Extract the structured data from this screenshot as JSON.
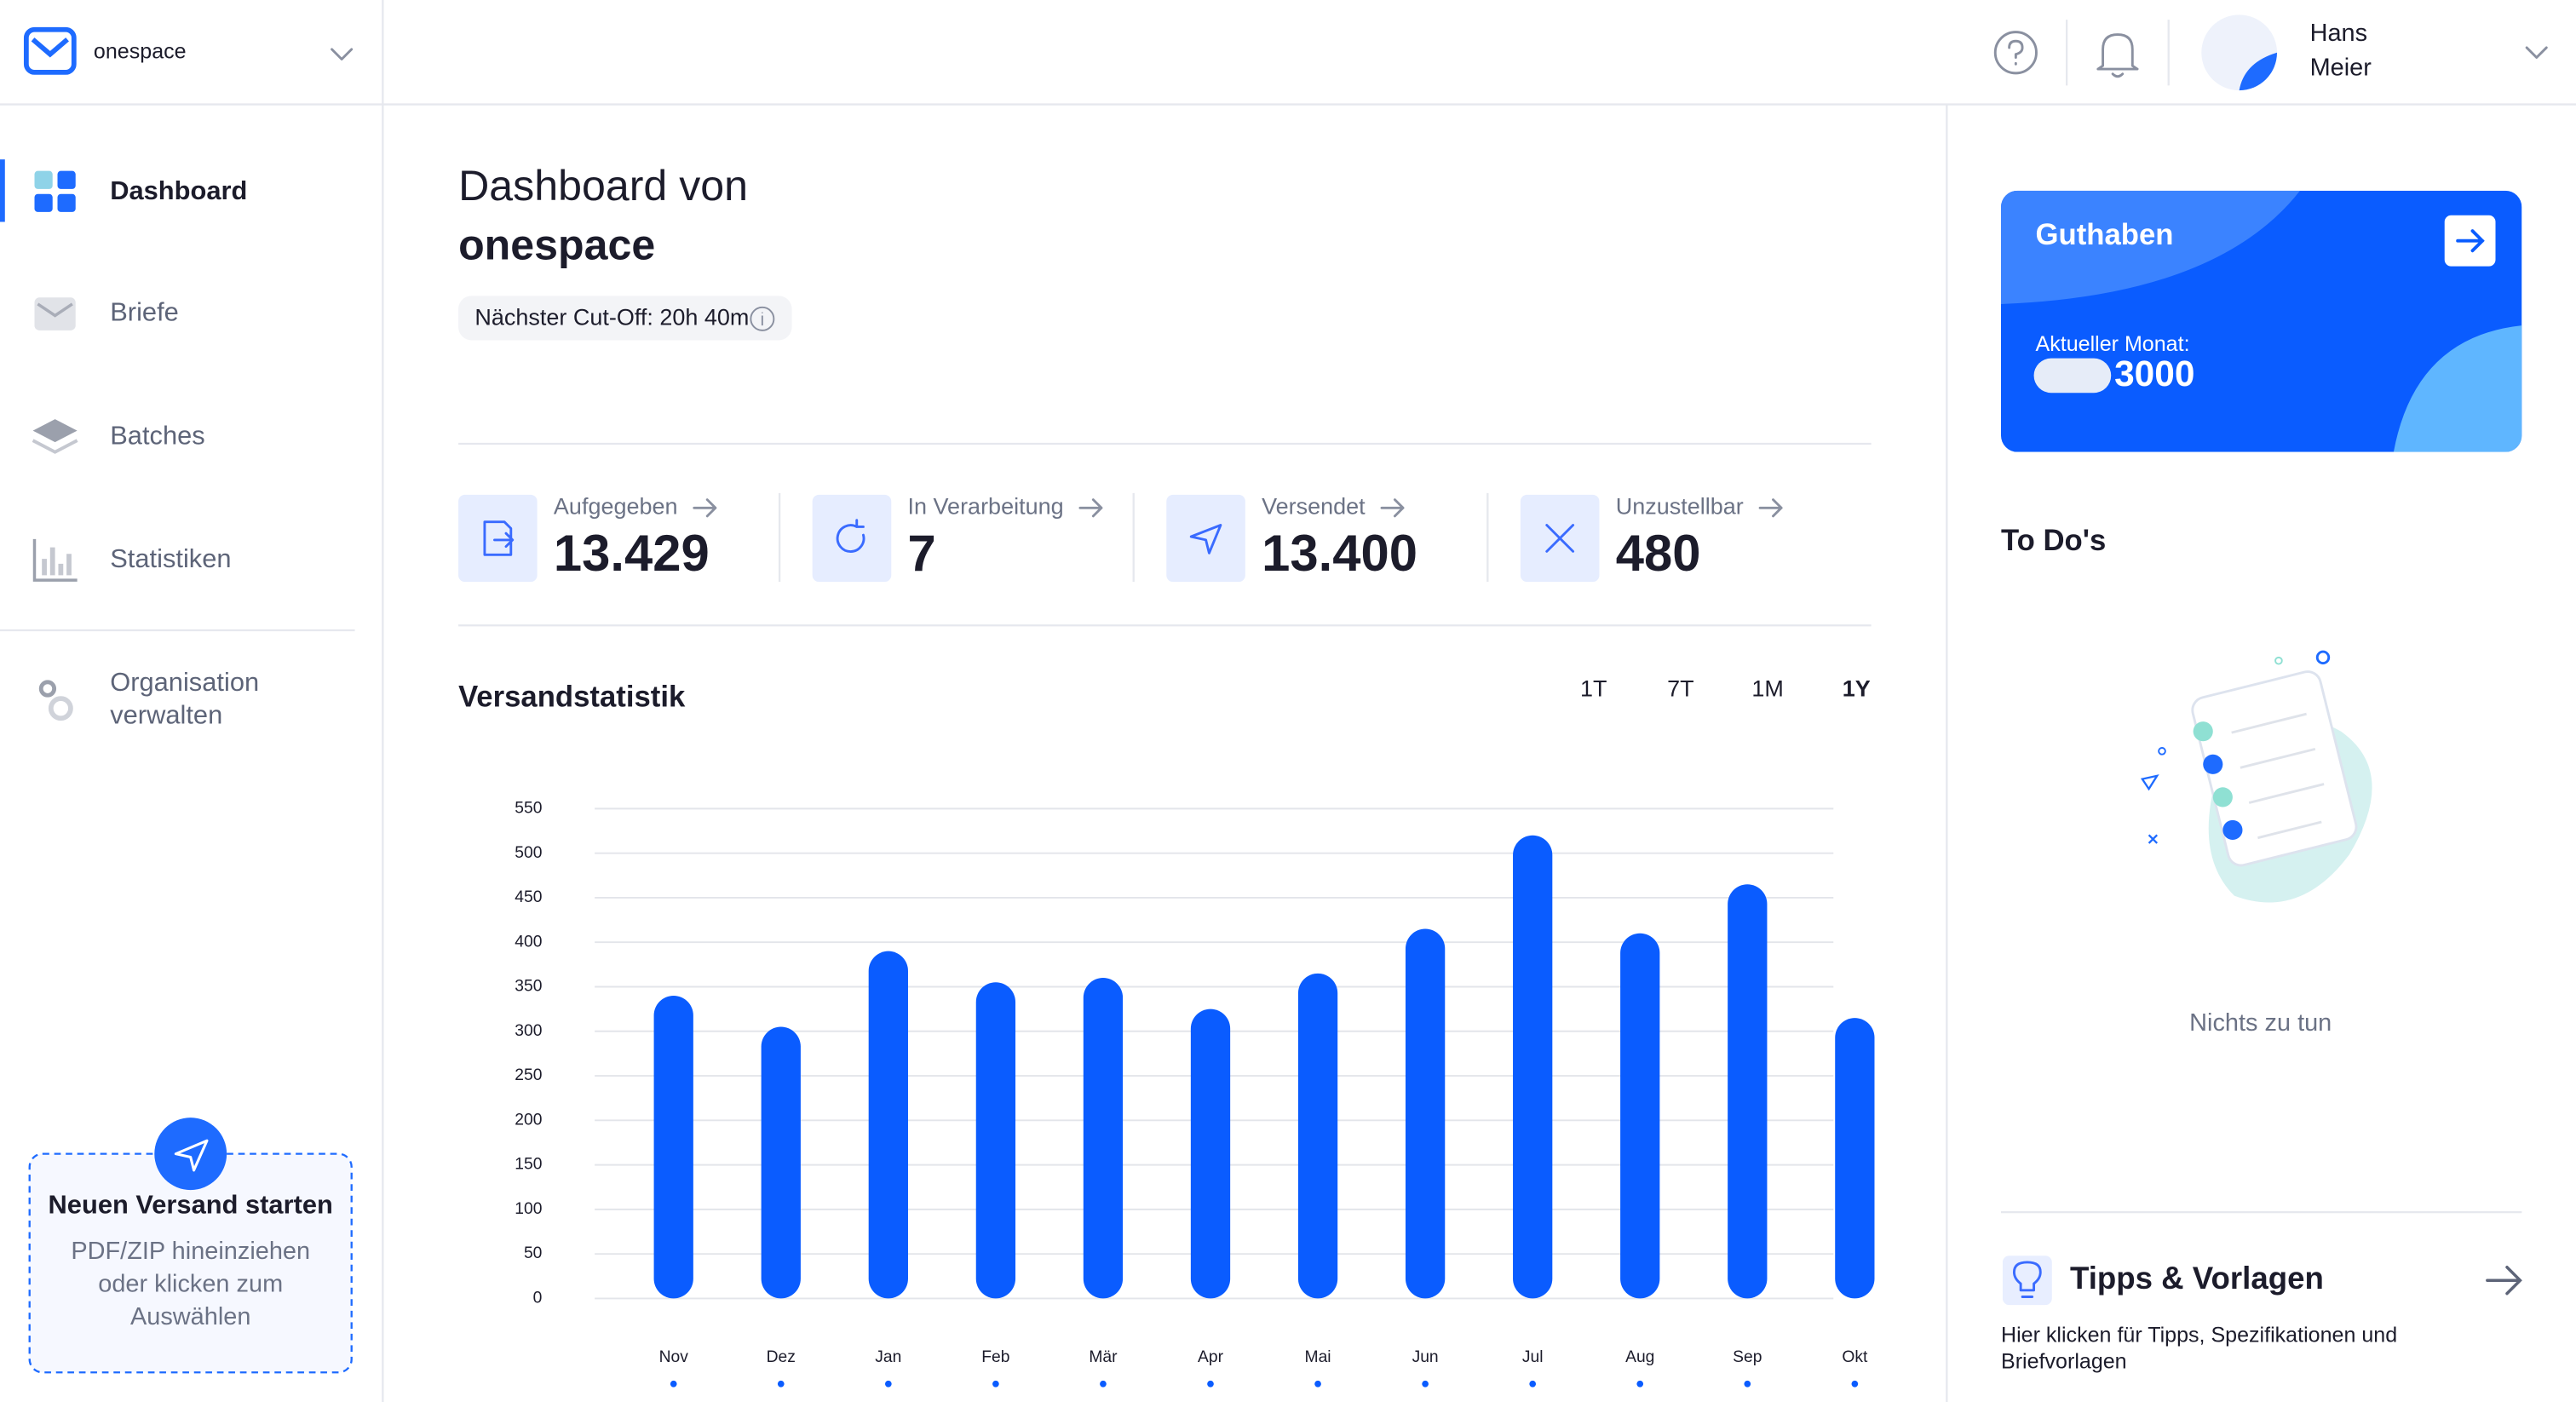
{
  "sidebar": {
    "brand": "onespace",
    "nav": [
      "Dashboard",
      "Briefe",
      "Batches",
      "Statistiken"
    ],
    "settings": [
      "Organisation",
      "verwalten"
    ]
  },
  "upload": {
    "title": "Neuen Versand starten",
    "text": [
      "PDF/ZIP hineinziehen",
      "oder klicken zum",
      "Auswählen"
    ]
  },
  "header": {
    "user": [
      "Hans",
      "Meier"
    ]
  },
  "main": {
    "title": "Dashboard von",
    "org": "onespace",
    "cutoff": "Nächster Cut-Off: 20h 40m",
    "stats": [
      {
        "label": "Aufgegeben",
        "value": "13.429"
      },
      {
        "label": "In Verarbeitung",
        "value": "7"
      },
      {
        "label": "Versendet",
        "value": "13.400"
      },
      {
        "label": "Unzustellbar",
        "value": "480"
      }
    ],
    "chart_title": "Versandstatistik",
    "periods": [
      "1T",
      "7T",
      "1M",
      "1Y"
    ]
  },
  "chart_data": {
    "type": "bar",
    "color": "#0a5cff",
    "grid": true,
    "categories": [
      "Nov",
      "Dez",
      "Jan",
      "Feb",
      "Mär",
      "Apr",
      "Mai",
      "Jun",
      "Jul",
      "Aug",
      "Sep",
      "Okt"
    ],
    "values": [
      340,
      305,
      390,
      355,
      360,
      325,
      365,
      415,
      520,
      410,
      465,
      315
    ],
    "ylim": [
      0,
      550
    ],
    "yticks": [
      0,
      50,
      100,
      150,
      200,
      250,
      300,
      350,
      400,
      450,
      500,
      550
    ]
  },
  "balance": {
    "title": "Guthaben",
    "label": "Aktueller Monat:",
    "value": "3000"
  },
  "todos": {
    "title": "To Do's",
    "empty": "Nichts zu tun"
  },
  "tips": {
    "title": "Tipps & Vorlagen",
    "text": [
      "Hier klicken für Tipps, Spezifikationen und",
      "Briefvorlagen"
    ]
  }
}
